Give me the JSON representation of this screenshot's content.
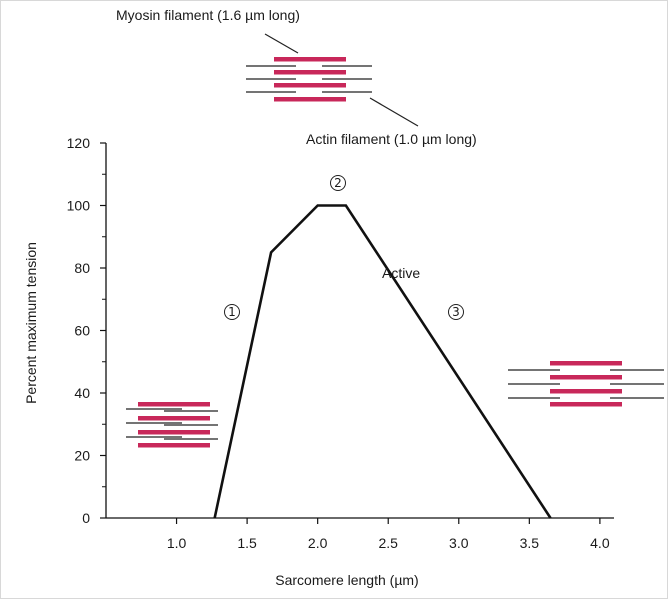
{
  "chart_data": {
    "type": "line",
    "xlabel": "Sarcomere length (µm)",
    "ylabel": "Percent maximum tension",
    "xlim": [
      0.5,
      4.1
    ],
    "ylim": [
      0,
      120
    ],
    "x_ticks": [
      "1.0",
      "1.5",
      "2.0",
      "2.5",
      "3.0",
      "3.5",
      "4.0"
    ],
    "y_ticks": [
      "0",
      "20",
      "40",
      "60",
      "80",
      "100",
      "120"
    ],
    "series": [
      {
        "name": "Active",
        "x": [
          1.27,
          1.67,
          2.0,
          2.2,
          3.65
        ],
        "y": [
          0,
          85,
          100,
          100,
          0
        ]
      }
    ],
    "annotations": {
      "myosin": "Myosin filament (1.6 µm long)",
      "actin": "Actin filament (1.0 µm long)",
      "active": "Active",
      "markers": [
        "1",
        "2",
        "3"
      ]
    },
    "colors": {
      "filament_myosin": "#c8285a",
      "line": "#111111"
    }
  }
}
